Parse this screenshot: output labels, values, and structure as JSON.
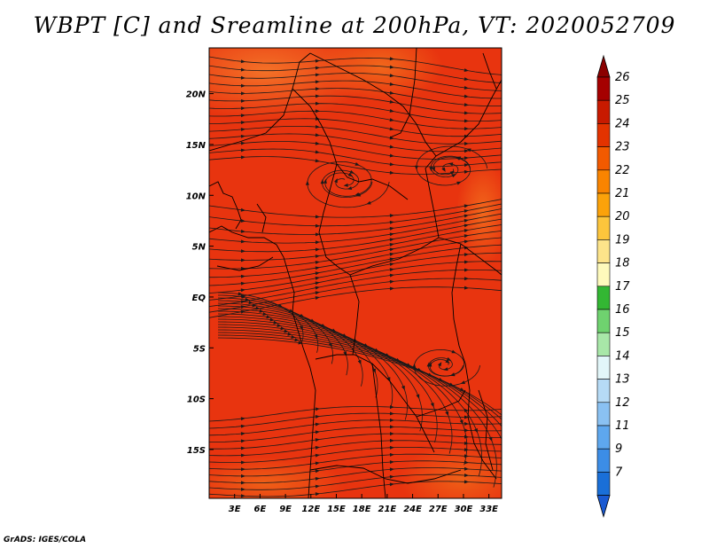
{
  "title": "WBPT [C] and Sreamline at 200hPa, VT: 2020052709",
  "credit": "GrADS: IGES/COLA",
  "map": {
    "lon_labels": [
      "3E",
      "6E",
      "9E",
      "12E",
      "15E",
      "18E",
      "21E",
      "24E",
      "27E",
      "30E",
      "33E"
    ],
    "lon_values": [
      3,
      6,
      9,
      12,
      15,
      18,
      21,
      24,
      27,
      30,
      33
    ],
    "lat_labels": [
      "20N",
      "15N",
      "10N",
      "5N",
      "EQ",
      "5S",
      "10S",
      "15S"
    ],
    "lat_values": [
      20,
      15,
      10,
      5,
      0,
      -5,
      -10,
      -15
    ],
    "lon_range": [
      0,
      34.5
    ],
    "lat_range": [
      -19.8,
      24.5
    ],
    "shading_color": "#e8340f"
  },
  "colorbar": {
    "labels": [
      "26",
      "25",
      "24",
      "23",
      "22",
      "21",
      "20",
      "19",
      "18",
      "17",
      "16",
      "15",
      "14",
      "13",
      "12",
      "11",
      "9",
      "7"
    ],
    "colors": [
      "#a50000",
      "#c81a00",
      "#e33300",
      "#f25a00",
      "#f98400",
      "#fba20a",
      "#fcc53c",
      "#fde48a",
      "#fefabc",
      "#33b733",
      "#6fd26f",
      "#a8e7a8",
      "#e2f6f9",
      "#b6dbf6",
      "#8ac1f2",
      "#5ea7ee",
      "#3c8de6",
      "#1a6fd8"
    ],
    "top_arrow": "#8b0000",
    "bottom_arrow": "#1a5ad2"
  }
}
